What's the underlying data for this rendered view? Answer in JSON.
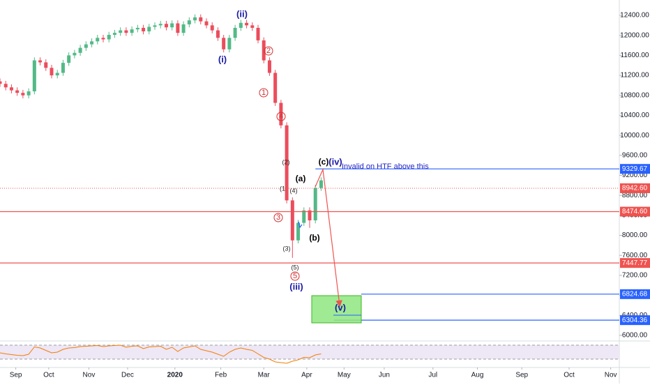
{
  "chart_data": {
    "type": "candlestick",
    "x": [
      0,
      4,
      8,
      12,
      16,
      20,
      24,
      28,
      32,
      36,
      40,
      44,
      48,
      52,
      56,
      60,
      64,
      68,
      72,
      76,
      80,
      84,
      88,
      92,
      96,
      100,
      104,
      108,
      112,
      116,
      120,
      124,
      128,
      132,
      136,
      140,
      144,
      148,
      152,
      156,
      160,
      164,
      168,
      172,
      176,
      180,
      184,
      188,
      192,
      196,
      200,
      204,
      208,
      212,
      216,
      220,
      224
    ],
    "open": [
      11080,
      11030,
      10960,
      10900,
      10850,
      10800,
      10880,
      11500,
      11460,
      11350,
      11200,
      11250,
      11450,
      11600,
      11650,
      11750,
      11820,
      11880,
      11950,
      11920,
      12010,
      12050,
      12100,
      12050,
      12120,
      12150,
      12080,
      12170,
      12200,
      12230,
      12160,
      12240,
      12050,
      12220,
      12300,
      12360,
      12280,
      12200,
      12100,
      11950,
      11720,
      11950,
      12150,
      12250,
      12200,
      12150,
      11900,
      11500,
      11250,
      10650,
      10200,
      8700,
      7900,
      8250,
      8500,
      8300,
      8950
    ],
    "high": [
      11140,
      11090,
      11020,
      10960,
      10910,
      10940,
      11560,
      11560,
      11520,
      11410,
      11310,
      11510,
      11660,
      11710,
      11810,
      11880,
      11940,
      12010,
      12010,
      12070,
      12110,
      12160,
      12160,
      12180,
      12210,
      12210,
      12230,
      12260,
      12290,
      12290,
      12300,
      12300,
      12280,
      12360,
      12420,
      12420,
      12340,
      12260,
      12160,
      12010,
      12010,
      12210,
      12310,
      12310,
      12260,
      12210,
      11960,
      11560,
      11310,
      10710,
      10260,
      8760,
      8310,
      8560,
      8560,
      9010,
      9160
    ],
    "low": [
      10970,
      10900,
      10840,
      10790,
      10740,
      10740,
      10820,
      11400,
      11290,
      11140,
      11140,
      11190,
      11390,
      11540,
      11590,
      11690,
      11760,
      11820,
      11860,
      11860,
      11950,
      11990,
      11990,
      11990,
      12060,
      12020,
      12020,
      12110,
      12140,
      12100,
      12100,
      11990,
      11990,
      12160,
      12240,
      12220,
      12140,
      12040,
      11890,
      11660,
      11660,
      11890,
      12090,
      12140,
      12090,
      11840,
      11440,
      11190,
      10590,
      10140,
      8640,
      7550,
      7840,
      8190,
      8150,
      8240,
      8890
    ],
    "close": [
      11030,
      10960,
      10900,
      10850,
      10800,
      10880,
      11500,
      11460,
      11350,
      11200,
      11250,
      11450,
      11600,
      11650,
      11750,
      11820,
      11880,
      11950,
      11920,
      12010,
      12050,
      12100,
      12050,
      12120,
      12150,
      12080,
      12170,
      12200,
      12230,
      12160,
      12240,
      12050,
      12220,
      12300,
      12360,
      12280,
      12200,
      12100,
      11950,
      11720,
      11950,
      12150,
      12250,
      12200,
      12150,
      11900,
      11500,
      11250,
      10650,
      10200,
      8700,
      7900,
      8250,
      8500,
      8300,
      8950,
      9100
    ],
    "up_color": "#53b987",
    "down_color": "#eb4d5c",
    "xlim": [
      0,
      432
    ],
    "xticks": [
      {
        "value": 11,
        "label": "Sep"
      },
      {
        "value": 34,
        "label": "Oct"
      },
      {
        "value": 62,
        "label": "Nov"
      },
      {
        "value": 89,
        "label": "Dec"
      },
      {
        "value": 122,
        "label": "2020"
      },
      {
        "value": 154,
        "label": "Feb"
      },
      {
        "value": 184,
        "label": "Mar"
      },
      {
        "value": 214,
        "label": "Apr"
      },
      {
        "value": 240,
        "label": "May"
      },
      {
        "value": 268,
        "label": "Jun"
      },
      {
        "value": 302,
        "label": "Jul"
      },
      {
        "value": 333,
        "label": "Aug"
      },
      {
        "value": 364,
        "label": "Sep"
      },
      {
        "value": 397,
        "label": "Oct"
      },
      {
        "value": 426,
        "label": "Nov"
      }
    ],
    "ylim": [
      5902,
      12707
    ],
    "yticks": [
      {
        "value": 6000,
        "label": "6000.00"
      },
      {
        "value": 6400,
        "label": "6400.00"
      },
      {
        "value": 6800,
        "label": "6800.00"
      },
      {
        "value": 7200,
        "label": "7200.00"
      },
      {
        "value": 7600,
        "label": "7600.00"
      },
      {
        "value": 8000,
        "label": "8000.00"
      },
      {
        "value": 8400,
        "label": "8400.00"
      },
      {
        "value": 8800,
        "label": "8800.00"
      },
      {
        "value": 9200,
        "label": "9200.00"
      },
      {
        "value": 9600,
        "label": "9600.00"
      },
      {
        "value": 10000,
        "label": "10000.00"
      },
      {
        "value": 10400,
        "label": "10400.00"
      },
      {
        "value": 10800,
        "label": "10800.00"
      },
      {
        "value": 11200,
        "label": "11200.00"
      },
      {
        "value": 11600,
        "label": "11600.00"
      },
      {
        "value": 12000,
        "label": "12000.00"
      },
      {
        "value": 12400,
        "label": "12400.00"
      }
    ],
    "levels": [
      {
        "value": 9329.67,
        "color": "#2962ff",
        "from": 220
      },
      {
        "value": 8942.6,
        "label": "8942.60",
        "color": "#ef5350",
        "style": "dotted"
      },
      {
        "value": 8474.6,
        "label": "8474.60",
        "color": "#ef5350"
      },
      {
        "value": 7447.77,
        "color": "#ef5350"
      },
      {
        "value": 6824.68,
        "color": "#2962ff",
        "from": 252
      },
      {
        "value": 6304.36,
        "color": "#2962ff",
        "from": 233
      }
    ],
    "annotations": [
      {
        "text": "(ii)",
        "color": "#1a1aa6"
      },
      {
        "text": "(i)",
        "color": "#1a1aa6"
      },
      {
        "text": "2",
        "color": "#d32f2f",
        "circled": true
      },
      {
        "text": "1",
        "color": "#d32f2f",
        "circled": true
      },
      {
        "text": "4",
        "color": "#d32f2f",
        "circled": true
      },
      {
        "text": "(2)",
        "color": "#222222"
      },
      {
        "text": "(1",
        "color": "#222222"
      },
      {
        "text": "(4)",
        "color": "#222222"
      },
      {
        "text": "(a)",
        "color": "#000000"
      },
      {
        "text": "(c)",
        "color": "#000000"
      },
      {
        "text": "(iv)",
        "color": "#1a1aa6"
      },
      {
        "text": "Invalid on HTF above this",
        "color": "#2323c8"
      },
      {
        "text": "3",
        "color": "#d32f2f",
        "circled": true
      },
      {
        "text": "(b)",
        "color": "#000000"
      },
      {
        "text": "(3)",
        "color": "#222222"
      },
      {
        "text": "(5)",
        "color": "#222222"
      },
      {
        "text": "5",
        "color": "#d32f2f",
        "circled": true
      },
      {
        "text": "(iii)",
        "color": "#1a1aa6"
      },
      {
        "text": "(v)",
        "color": "#1a1aa6"
      }
    ],
    "rsi": {
      "values": [
        48,
        45,
        43,
        41,
        40,
        44,
        65,
        62,
        55,
        48,
        50,
        58,
        62,
        63,
        66,
        67,
        68,
        69,
        66,
        68,
        69,
        70,
        64,
        67,
        68,
        60,
        65,
        66,
        67,
        58,
        64,
        52,
        62,
        65,
        68,
        58,
        54,
        50,
        44,
        38,
        50,
        58,
        62,
        58,
        55,
        45,
        35,
        30,
        22,
        20,
        18,
        24,
        28,
        35,
        34,
        42,
        45
      ],
      "color": "#f57c00",
      "band": [
        30,
        70
      ],
      "band_color": "#ede7f6",
      "ylim": [
        20,
        80
      ]
    }
  }
}
